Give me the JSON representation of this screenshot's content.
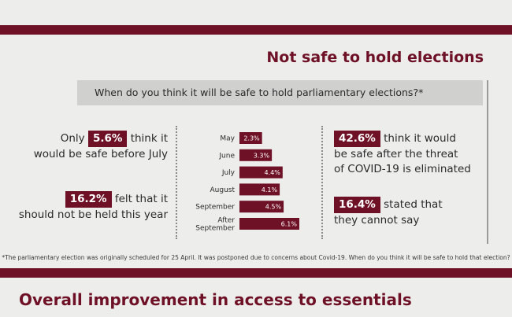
{
  "section": {
    "title": "Not safe to hold elections",
    "question": "When do you think it will be safe to hold parliamentary elections?*",
    "footnote": "*The parliamentary election was originally scheduled for 25 April. It was postponed due to concerns about Covid-19. When do you think it will be safe to hold that election?"
  },
  "stats": {
    "a": {
      "pre": "Only",
      "value": "5.6%",
      "post": "think it",
      "line2": "would be safe before July"
    },
    "b": {
      "value": "16.2%",
      "post": "felt that it",
      "line2": "should not be held this year"
    },
    "c": {
      "value": "42.6%",
      "post": "think it would",
      "line2": "be safe after the threat",
      "line3": "of COVID-19 is eliminated"
    },
    "d": {
      "value": "16.4%",
      "post": "stated that",
      "line2": "they cannot say"
    }
  },
  "next_section": {
    "title": "Overall improvement in access to essentials"
  },
  "colors": {
    "accent": "#6f1126",
    "band": "#6f1126",
    "question_bg": "#d0d0ce"
  },
  "chart_data": {
    "type": "bar",
    "orientation": "horizontal",
    "categories": [
      "May",
      "June",
      "July",
      "August",
      "September",
      "After\nSeptember"
    ],
    "values": [
      2.3,
      3.3,
      4.4,
      4.1,
      4.5,
      6.1
    ],
    "labels": [
      "2.3%",
      "3.3%",
      "4.4%",
      "4.1%",
      "4.5%",
      "6.1%"
    ],
    "xlim": [
      0,
      6.1
    ]
  }
}
